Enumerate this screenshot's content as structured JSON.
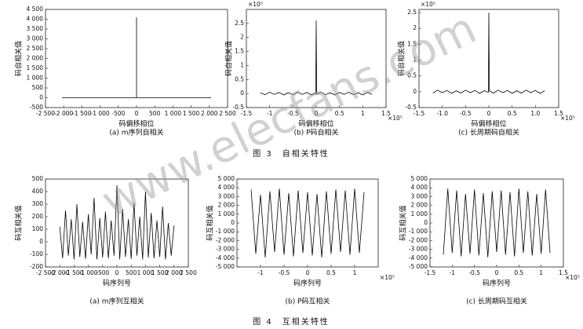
{
  "watermark": "www.elecfans.com",
  "figure_captions": [
    "图 3　自相关特性",
    "图 4　互相关特性"
  ],
  "chart_data": [
    {
      "type": "line",
      "caption": "(a) m序列自相关",
      "xlabel": "码偏移相位",
      "ylabel": "码自相关值",
      "x": [
        -2047,
        -1500,
        -1000,
        -500,
        -1,
        0,
        1,
        500,
        1000,
        1500,
        2047
      ],
      "values": [
        -1,
        -1,
        -1,
        -1,
        -1,
        4095,
        -1,
        -1,
        -1,
        -1,
        -1
      ],
      "xlim": [
        -2500,
        2500
      ],
      "ylim": [
        -500,
        4500
      ],
      "xticks": [
        {
          "value": -2500,
          "label": "-2 500"
        },
        {
          "value": -2000,
          "label": "-2 000"
        },
        {
          "value": -1500,
          "label": "-1 500"
        },
        {
          "value": -1000,
          "label": "-1 000"
        },
        -500,
        0,
        500,
        {
          "value": 1000,
          "label": "1 000"
        },
        {
          "value": 1500,
          "label": "1 500"
        },
        {
          "value": 2000,
          "label": "2 000"
        },
        {
          "value": 2500,
          "label": "2 500"
        }
      ],
      "yticks": [
        -500,
        0,
        500,
        {
          "value": 1000,
          "label": "1 000"
        },
        {
          "value": 1500,
          "label": "1 500"
        },
        {
          "value": 2000,
          "label": "2 000"
        },
        {
          "value": 2500,
          "label": "2 500"
        },
        {
          "value": 3000,
          "label": "3 000"
        },
        {
          "value": 3500,
          "label": "3 500"
        },
        {
          "value": 4000,
          "label": "4 000"
        },
        {
          "value": 4500,
          "label": "4 500"
        }
      ],
      "color": "#000000"
    },
    {
      "type": "line",
      "caption": "(b) P码自相关",
      "xlabel": "码偏移相位",
      "ylabel": "码自相关值",
      "x_multiplier": "×10⁵",
      "y_multiplier": "×10⁵",
      "x": [
        -1.2,
        -1.1,
        -1.0,
        -0.9,
        -0.8,
        -0.7,
        -0.6,
        -0.5,
        -0.4,
        -0.3,
        -0.2,
        -0.1,
        -0.01,
        0,
        0.01,
        0.1,
        0.2,
        0.3,
        0.4,
        0.5,
        0.6,
        0.7,
        0.8,
        0.9,
        1.0,
        1.1,
        1.2
      ],
      "values": [
        0.03,
        -0.04,
        0.05,
        -0.03,
        0.04,
        -0.05,
        0.03,
        -0.04,
        0.05,
        -0.03,
        0.04,
        -0.05,
        0.02,
        2.6,
        -0.03,
        0.05,
        -0.04,
        0.03,
        -0.05,
        0.04,
        -0.03,
        0.05,
        -0.04,
        0.03,
        -0.05,
        0.04,
        -0.03
      ],
      "xlim": [
        -1.5,
        1.5
      ],
      "ylim": [
        -0.5,
        3
      ],
      "xticks": [
        -1.5,
        -1,
        -0.5,
        0,
        0.5,
        1,
        1.5
      ],
      "yticks": [
        -0.5,
        0,
        0.5,
        1,
        1.5,
        2,
        2.5
      ],
      "color": "#000000"
    },
    {
      "type": "line",
      "caption": "(c) 长周期码自相关",
      "xlabel": "码偏移相位",
      "ylabel": "码自相关值",
      "x_multiplier": "×10⁵",
      "y_multiplier": "×10⁵",
      "x": [
        -1.2,
        -1.1,
        -1.0,
        -0.9,
        -0.8,
        -0.7,
        -0.6,
        -0.5,
        -0.4,
        -0.3,
        -0.2,
        -0.1,
        -0.01,
        0,
        0.01,
        0.1,
        0.2,
        0.3,
        0.4,
        0.5,
        0.6,
        0.7,
        0.8,
        0.9,
        1.0,
        1.1,
        1.2
      ],
      "values": [
        -0.04,
        0.05,
        -0.03,
        0.04,
        -0.05,
        0.03,
        -0.04,
        0.05,
        -0.03,
        0.04,
        -0.05,
        0.03,
        -0.02,
        2.5,
        0.03,
        -0.04,
        0.05,
        -0.03,
        0.04,
        -0.05,
        0.03,
        -0.04,
        0.05,
        -0.03,
        0.04,
        -0.05,
        0.03
      ],
      "xlim": [
        -1.5,
        1.5
      ],
      "ylim": [
        -0.5,
        2.6
      ],
      "xticks": [
        -1.5,
        {
          "value": -1,
          "label": "-1.0"
        },
        -0.5,
        0,
        0.5,
        {
          "value": 1,
          "label": "1.0"
        },
        1.5
      ],
      "yticks": [
        -0.5,
        0,
        0.5,
        1,
        1.5,
        2,
        2.5
      ],
      "color": "#000000"
    },
    {
      "type": "line",
      "caption": "(a) m序列互相关",
      "xlabel": "码序列号",
      "ylabel": "码互相关值",
      "x": [
        -2000,
        -1900,
        -1800,
        -1700,
        -1600,
        -1500,
        -1400,
        -1300,
        -1200,
        -1100,
        -1000,
        -900,
        -800,
        -700,
        -600,
        -500,
        -400,
        -300,
        -200,
        -100,
        0,
        100,
        200,
        300,
        400,
        500,
        600,
        700,
        800,
        900,
        1000,
        1100,
        1200,
        1300,
        1400,
        1500,
        1600,
        1700,
        1800,
        1900,
        2000
      ],
      "values": [
        120,
        -130,
        250,
        -110,
        180,
        -140,
        300,
        -120,
        160,
        -135,
        220,
        -100,
        350,
        -140,
        190,
        -125,
        240,
        -130,
        170,
        -110,
        450,
        -140,
        260,
        -120,
        180,
        -135,
        310,
        -110,
        200,
        -140,
        400,
        -125,
        230,
        -130,
        170,
        -120,
        280,
        -140,
        150,
        -110,
        130
      ],
      "xlim": [
        -2500,
        2500
      ],
      "ylim": [
        -200,
        500
      ],
      "xticks": [
        {
          "value": -2500,
          "label": "-2 500"
        },
        {
          "value": -2000,
          "label": "-2 000"
        },
        {
          "value": -1500,
          "label": "-1 500"
        },
        {
          "value": -1000,
          "label": "-1 000"
        },
        -500,
        0,
        500,
        {
          "value": 1000,
          "label": "1 000"
        },
        {
          "value": 1500,
          "label": "1 500"
        },
        {
          "value": 2000,
          "label": "2 000"
        },
        {
          "value": 2500,
          "label": "2 500"
        }
      ],
      "yticks": [
        -200,
        -100,
        0,
        100,
        200,
        300,
        400,
        500
      ],
      "color": "#000000"
    },
    {
      "type": "line",
      "caption": "(b) P码互相关",
      "xlabel": "码序列号",
      "ylabel": "码互相关值",
      "x_multiplier": "×10⁵",
      "x": [
        -1.2,
        -1.1,
        -1.0,
        -0.9,
        -0.8,
        -0.7,
        -0.6,
        -0.5,
        -0.4,
        -0.3,
        -0.2,
        -0.1,
        0,
        0.1,
        0.2,
        0.3,
        0.4,
        0.5,
        0.6,
        0.7,
        0.8,
        0.9,
        1.0,
        1.1,
        1.2
      ],
      "values": [
        3800,
        -3500,
        3200,
        -3900,
        3600,
        -3300,
        3900,
        -3600,
        3400,
        -3800,
        3700,
        -3400,
        3500,
        -3700,
        3300,
        -3900,
        3600,
        -3500,
        3800,
        -3300,
        3700,
        -3600,
        3900,
        -3400,
        3500
      ],
      "xlim": [
        -1.5,
        1.5
      ],
      "ylim": [
        -5000,
        5000
      ],
      "xticks": [
        -1,
        -0.5,
        0,
        0.5,
        1
      ],
      "yticks": [
        {
          "value": -5000,
          "label": "-5 000"
        },
        {
          "value": -4000,
          "label": "-4 000"
        },
        {
          "value": -3000,
          "label": "-3 000"
        },
        {
          "value": -2000,
          "label": "-2 000"
        },
        {
          "value": -1000,
          "label": "-1 000"
        },
        0,
        {
          "value": 1000,
          "label": "1 000"
        },
        {
          "value": 2000,
          "label": "2 000"
        },
        {
          "value": 3000,
          "label": "3 000"
        },
        {
          "value": 4000,
          "label": "4 000"
        },
        {
          "value": 5000,
          "label": "5 000"
        }
      ],
      "color": "#000000"
    },
    {
      "type": "line",
      "caption": "(c) 长周期码互相关",
      "xlabel": "码序列号",
      "ylabel": "码互相关值",
      "x_multiplier": "×10⁵",
      "x": [
        -1.2,
        -1.1,
        -1.0,
        -0.9,
        -0.8,
        -0.7,
        -0.6,
        -0.5,
        -0.4,
        -0.3,
        -0.2,
        -0.1,
        0,
        0.1,
        0.2,
        0.3,
        0.4,
        0.5,
        0.6,
        0.7,
        0.8,
        0.9,
        1.0,
        1.1,
        1.2
      ],
      "values": [
        -3600,
        3900,
        -3400,
        3700,
        -3800,
        3300,
        -3500,
        3800,
        -3700,
        3400,
        -3900,
        3600,
        -3300,
        3700,
        -3600,
        3500,
        -3800,
        3900,
        -3400,
        3600,
        -3700,
        3300,
        -3500,
        3800,
        -3400
      ],
      "xlim": [
        -1.5,
        1.5
      ],
      "ylim": [
        -5000,
        5000
      ],
      "xticks": [
        -1.5,
        -1,
        -0.5,
        0,
        0.5,
        1,
        1.5
      ],
      "yticks": [
        {
          "value": -5000,
          "label": "-5 000"
        },
        {
          "value": -4000,
          "label": "-4 000"
        },
        {
          "value": -3000,
          "label": "-3 000"
        },
        {
          "value": -2000,
          "label": "-2 000"
        },
        {
          "value": -1000,
          "label": "-1 000"
        },
        0,
        {
          "value": 1000,
          "label": "1 000"
        },
        {
          "value": 2000,
          "label": "2 000"
        },
        {
          "value": 3000,
          "label": "3 000"
        },
        {
          "value": 4000,
          "label": "4 000"
        },
        {
          "value": 5000,
          "label": "5 000"
        }
      ],
      "color": "#000000"
    }
  ]
}
